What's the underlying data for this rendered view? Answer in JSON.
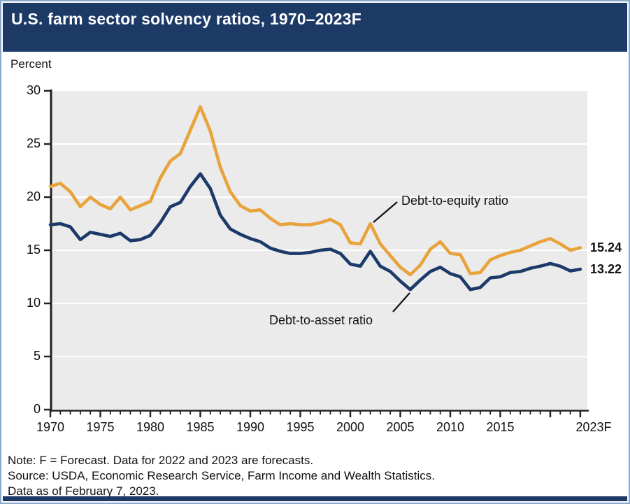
{
  "title": "U.S. farm sector solvency ratios, 1970–2023F",
  "axis_unit_label": "Percent",
  "end_labels": {
    "equity": "15.24",
    "asset": "13.22"
  },
  "annotations": {
    "equity_label": "Debt-to-equity ratio",
    "asset_label": "Debt-to-asset ratio"
  },
  "notes": {
    "line1": "Note: F = Forecast. Data for 2022 and 2023 are forecasts.",
    "line2": "Source: USDA, Economic Research Service, Farm Income and Wealth Statistics.",
    "line3": "Data as of February 7, 2023."
  },
  "colors": {
    "title_bar": "#1d3a66",
    "bottom_bar": "#1d3a66",
    "frame_border": "#8aa9cc",
    "equity_line": "#e8a33c",
    "asset_line": "#1c3a69",
    "plot_bg": "#ebebeb",
    "gridline": "#ffffff",
    "axis": "#222222",
    "annotation_pointer": "#111111"
  },
  "chart_data": {
    "type": "line",
    "title": "U.S. farm sector solvency ratios, 1970–2023F",
    "xlabel": "",
    "ylabel": "Percent",
    "ylim": [
      0,
      30
    ],
    "yticks": [
      0,
      5,
      10,
      15,
      20,
      25,
      30
    ],
    "xticks_labeled": [
      1970,
      1975,
      1980,
      1985,
      1990,
      1995,
      2000,
      2005,
      2010,
      2015
    ],
    "final_xtick": 2023,
    "final_xtick_label": "2023F",
    "grid": "horizontal white gridlines on gray plot background",
    "legend_position": "inline annotations with pointer lines",
    "x_start": 1970,
    "x_end": 2023,
    "series": [
      {
        "name": "Debt-to-equity ratio",
        "color": "#e8a33c",
        "end_value_label": "15.24",
        "values": [
          21.0,
          21.3,
          20.5,
          19.1,
          20.0,
          19.3,
          18.9,
          20.0,
          18.8,
          19.2,
          19.6,
          21.8,
          23.4,
          24.1,
          26.3,
          28.5,
          26.2,
          22.8,
          20.5,
          19.2,
          18.7,
          18.8,
          18.0,
          17.4,
          17.5,
          17.4,
          17.4,
          17.6,
          17.9,
          17.4,
          15.7,
          15.6,
          17.5,
          15.6,
          14.5,
          13.4,
          12.7,
          13.6,
          15.1,
          15.8,
          14.7,
          14.6,
          12.8,
          12.9,
          14.1,
          14.5,
          14.8,
          15.0,
          15.4,
          15.8,
          16.1,
          15.6,
          15.0,
          15.24
        ]
      },
      {
        "name": "Debt-to-asset ratio",
        "color": "#1c3a69",
        "end_value_label": "13.22",
        "values": [
          17.4,
          17.5,
          17.2,
          16.0,
          16.7,
          16.5,
          16.3,
          16.6,
          15.9,
          16.0,
          16.4,
          17.6,
          19.1,
          19.5,
          21.0,
          22.2,
          20.8,
          18.3,
          17.0,
          16.5,
          16.1,
          15.8,
          15.2,
          14.9,
          14.7,
          14.7,
          14.8,
          15.0,
          15.1,
          14.7,
          13.7,
          13.5,
          14.9,
          13.5,
          13.0,
          12.1,
          11.3,
          12.2,
          13.0,
          13.4,
          12.8,
          12.5,
          11.3,
          11.5,
          12.4,
          12.5,
          12.9,
          13.0,
          13.3,
          13.5,
          13.75,
          13.5,
          13.05,
          13.22
        ]
      }
    ]
  }
}
